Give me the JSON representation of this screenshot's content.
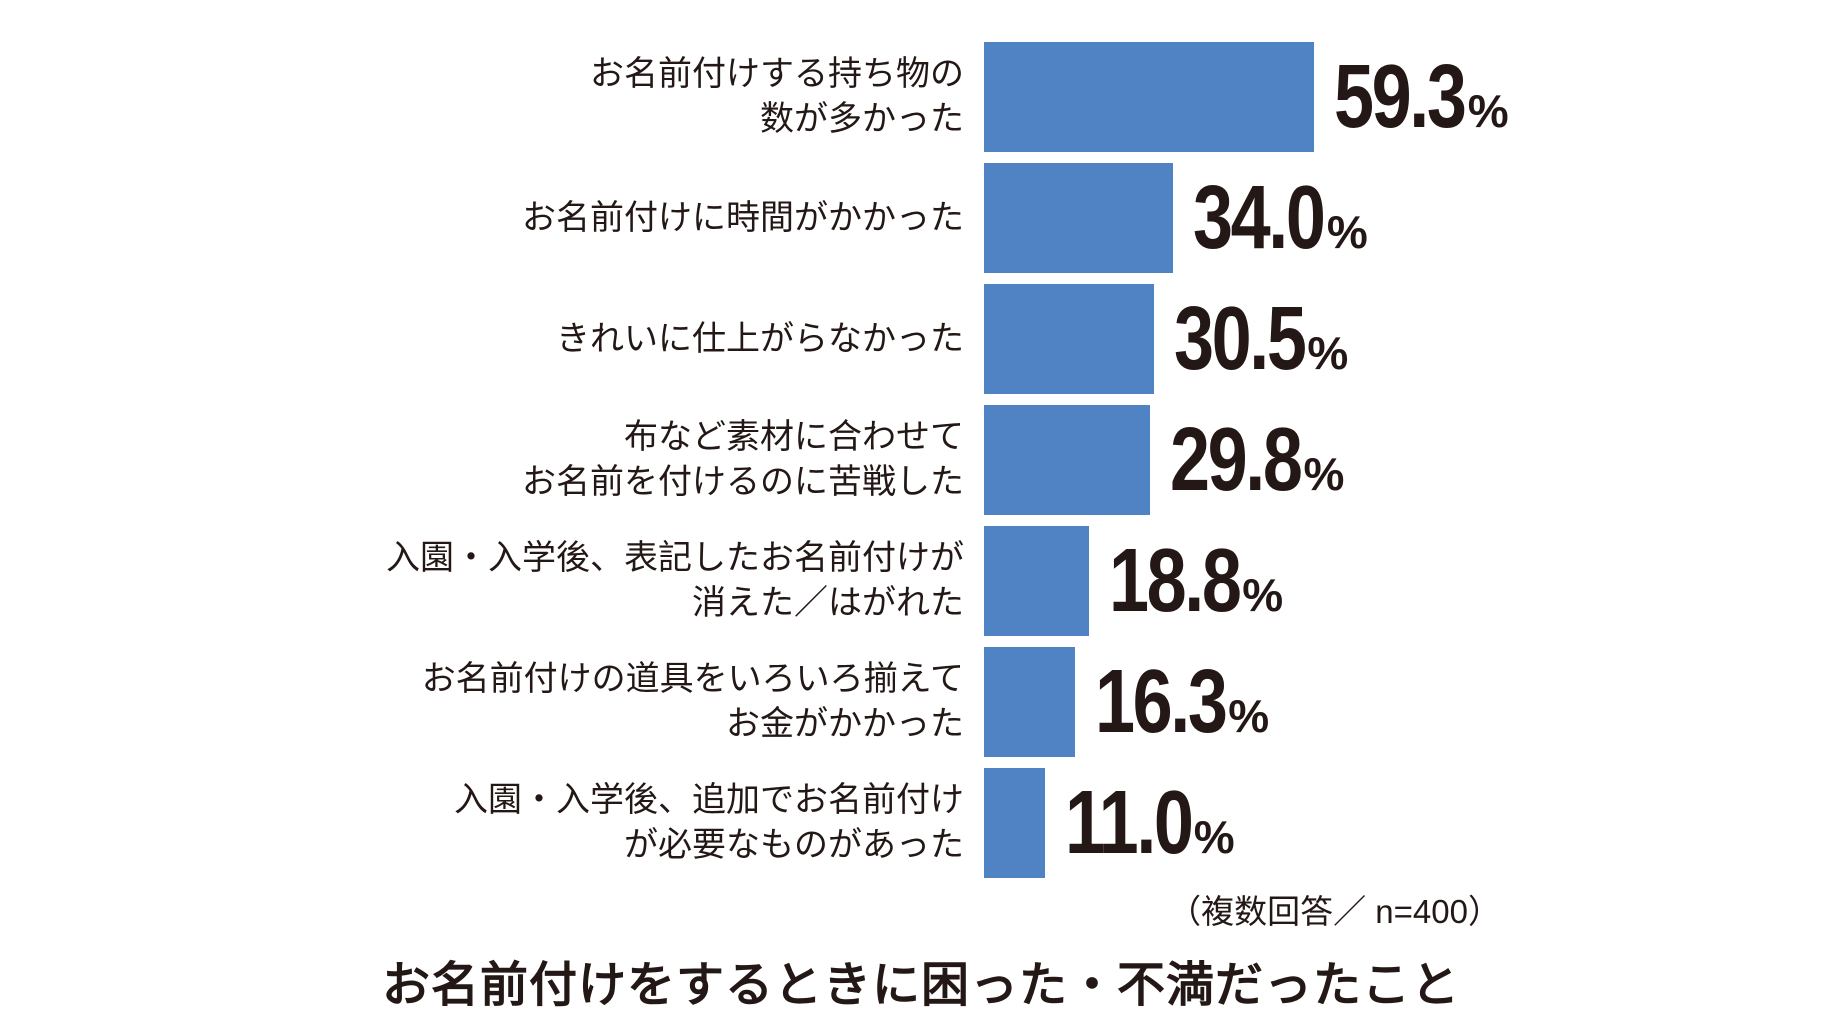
{
  "chart_data": {
    "type": "bar",
    "orientation": "horizontal",
    "title": "お名前付けをするときに困った・不満だったこと",
    "note": "（複数回答／ n=400）",
    "value_suffix": "%",
    "xlim": [
      0,
      65
    ],
    "grid": false,
    "legend": false,
    "colors": {
      "bar": "#5083C3",
      "text": "#231815",
      "background": "#ffffff"
    },
    "categories": [
      [
        "お名前付けする持ち物の",
        "数が多かった"
      ],
      [
        "お名前付けに時間がかかった"
      ],
      [
        "きれいに仕上がらなかった"
      ],
      [
        "布など素材に合わせて",
        "お名前を付けるのに苦戦した"
      ],
      [
        "入園・入学後、表記したお名前付けが",
        "消えた／はがれた"
      ],
      [
        "お名前付けの道具をいろいろ揃えて",
        "お金がかかった"
      ],
      [
        "入園・入学後、追加でお名前付け",
        "が必要なものがあった"
      ]
    ],
    "values": [
      59.3,
      34.0,
      30.5,
      29.8,
      18.8,
      16.3,
      11.0
    ],
    "value_labels": [
      "59.3",
      "34.0",
      "30.5",
      "29.8",
      "18.8",
      "16.3",
      "11.0"
    ]
  }
}
